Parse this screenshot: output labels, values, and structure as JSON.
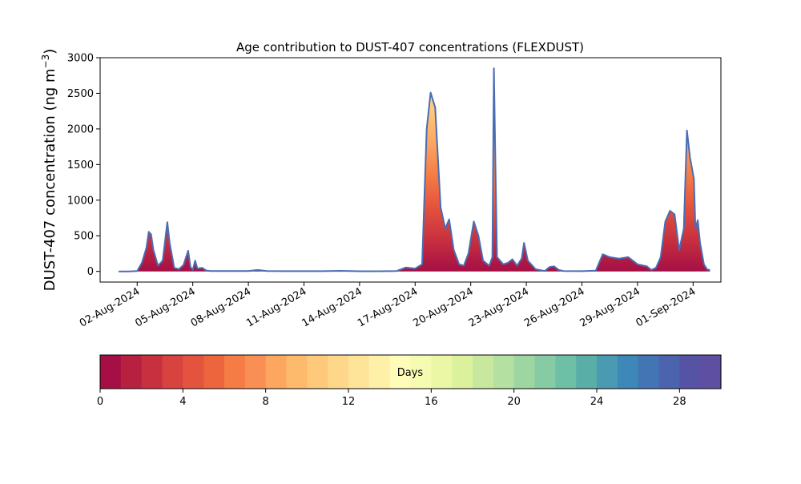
{
  "chart_data": {
    "type": "area",
    "title": "Age contribution to DUST-407 concentrations (FLEXDUST)",
    "xlabel": "",
    "ylabel": "DUST-407 concentration (ng m",
    "ylabel_superscript": "−3",
    "ylabel_close": ")",
    "xlim": [
      "2024-07-31T00:00",
      "2024-09-02T12:00"
    ],
    "ylim": [
      -150,
      3000
    ],
    "yticks": [
      0,
      500,
      1000,
      1500,
      2000,
      2500,
      3000
    ],
    "xtick_dates": [
      "2024-08-02",
      "2024-08-05",
      "2024-08-08",
      "2024-08-11",
      "2024-08-14",
      "2024-08-17",
      "2024-08-20",
      "2024-08-23",
      "2024-08-26",
      "2024-08-29",
      "2024-09-01"
    ],
    "xtick_labels": [
      "02-Aug-2024",
      "05-Aug-2024",
      "08-Aug-2024",
      "11-Aug-2024",
      "14-Aug-2024",
      "17-Aug-2024",
      "20-Aug-2024",
      "23-Aug-2024",
      "26-Aug-2024",
      "29-Aug-2024",
      "01-Sep-2024"
    ],
    "grid": false,
    "series": [
      {
        "color": "#4a6cb3",
        "points": [
          [
            "2024-08-01T00:00",
            0
          ],
          [
            "2024-08-01T12:00",
            0
          ],
          [
            "2024-08-02T00:00",
            5
          ],
          [
            "2024-08-02T06:00",
            120
          ],
          [
            "2024-08-02T12:00",
            330
          ],
          [
            "2024-08-02T15:00",
            555
          ],
          [
            "2024-08-02T18:00",
            520
          ],
          [
            "2024-08-02T21:00",
            300
          ],
          [
            "2024-08-03T03:00",
            80
          ],
          [
            "2024-08-03T09:00",
            150
          ],
          [
            "2024-08-03T15:00",
            690
          ],
          [
            "2024-08-03T18:00",
            400
          ],
          [
            "2024-08-04T00:00",
            50
          ],
          [
            "2024-08-04T06:00",
            30
          ],
          [
            "2024-08-04T12:00",
            90
          ],
          [
            "2024-08-04T18:00",
            290
          ],
          [
            "2024-08-04T21:00",
            60
          ],
          [
            "2024-08-05T00:00",
            20
          ],
          [
            "2024-08-05T03:00",
            150
          ],
          [
            "2024-08-05T06:00",
            40
          ],
          [
            "2024-08-05T12:00",
            50
          ],
          [
            "2024-08-05T18:00",
            10
          ],
          [
            "2024-08-06T00:00",
            5
          ],
          [
            "2024-08-07T00:00",
            5
          ],
          [
            "2024-08-08T00:00",
            5
          ],
          [
            "2024-08-08T12:00",
            20
          ],
          [
            "2024-08-09T00:00",
            5
          ],
          [
            "2024-08-10T00:00",
            3
          ],
          [
            "2024-08-11T00:00",
            3
          ],
          [
            "2024-08-12T00:00",
            3
          ],
          [
            "2024-08-13T00:00",
            8
          ],
          [
            "2024-08-14T00:00",
            2
          ],
          [
            "2024-08-15T00:00",
            2
          ],
          [
            "2024-08-16T00:00",
            5
          ],
          [
            "2024-08-16T12:00",
            55
          ],
          [
            "2024-08-17T00:00",
            40
          ],
          [
            "2024-08-17T09:00",
            100
          ],
          [
            "2024-08-17T15:00",
            2000
          ],
          [
            "2024-08-17T20:00",
            2510
          ],
          [
            "2024-08-18T02:00",
            2300
          ],
          [
            "2024-08-18T09:00",
            900
          ],
          [
            "2024-08-18T15:00",
            600
          ],
          [
            "2024-08-18T20:00",
            730
          ],
          [
            "2024-08-19T02:00",
            300
          ],
          [
            "2024-08-19T09:00",
            100
          ],
          [
            "2024-08-19T15:00",
            80
          ],
          [
            "2024-08-19T21:00",
            250
          ],
          [
            "2024-08-20T04:00",
            700
          ],
          [
            "2024-08-20T10:00",
            500
          ],
          [
            "2024-08-20T16:00",
            150
          ],
          [
            "2024-08-21T00:00",
            80
          ],
          [
            "2024-08-21T04:00",
            200
          ],
          [
            "2024-08-21T06:00",
            2850
          ],
          [
            "2024-08-21T08:00",
            1500
          ],
          [
            "2024-08-21T10:00",
            200
          ],
          [
            "2024-08-21T18:00",
            100
          ],
          [
            "2024-08-22T00:00",
            120
          ],
          [
            "2024-08-22T06:00",
            170
          ],
          [
            "2024-08-22T12:00",
            80
          ],
          [
            "2024-08-22T18:00",
            180
          ],
          [
            "2024-08-22T21:00",
            400
          ],
          [
            "2024-08-23T02:00",
            150
          ],
          [
            "2024-08-23T12:00",
            30
          ],
          [
            "2024-08-24T00:00",
            5
          ],
          [
            "2024-08-24T06:00",
            60
          ],
          [
            "2024-08-24T12:00",
            70
          ],
          [
            "2024-08-24T18:00",
            20
          ],
          [
            "2024-08-25T00:00",
            5
          ],
          [
            "2024-08-26T00:00",
            3
          ],
          [
            "2024-08-26T18:00",
            10
          ],
          [
            "2024-08-27T03:00",
            240
          ],
          [
            "2024-08-27T12:00",
            200
          ],
          [
            "2024-08-28T00:00",
            180
          ],
          [
            "2024-08-28T12:00",
            200
          ],
          [
            "2024-08-29T00:00",
            100
          ],
          [
            "2024-08-29T12:00",
            70
          ],
          [
            "2024-08-29T18:00",
            20
          ],
          [
            "2024-08-30T00:00",
            50
          ],
          [
            "2024-08-30T06:00",
            200
          ],
          [
            "2024-08-30T12:00",
            700
          ],
          [
            "2024-08-30T18:00",
            850
          ],
          [
            "2024-08-31T00:00",
            800
          ],
          [
            "2024-08-31T06:00",
            300
          ],
          [
            "2024-08-31T12:00",
            600
          ],
          [
            "2024-08-31T16:00",
            1980
          ],
          [
            "2024-08-31T20:00",
            1600
          ],
          [
            "2024-09-01T01:00",
            1300
          ],
          [
            "2024-09-01T03:00",
            600
          ],
          [
            "2024-09-01T06:00",
            720
          ],
          [
            "2024-09-01T09:00",
            400
          ],
          [
            "2024-09-01T14:00",
            100
          ],
          [
            "2024-09-01T18:00",
            30
          ],
          [
            "2024-09-01T22:00",
            15
          ]
        ]
      }
    ],
    "colorbar": {
      "label": "Days",
      "range": [
        0,
        30
      ],
      "ticks": [
        0,
        4,
        8,
        12,
        16,
        20,
        24,
        28
      ],
      "colors": [
        "#a50f45",
        "#b8203f",
        "#c9303f",
        "#d8423f",
        "#e4533d",
        "#ed653c",
        "#f57c45",
        "#f98f54",
        "#fca65f",
        "#fdb96c",
        "#fec97b",
        "#fed78a",
        "#fee499",
        "#fff0a8",
        "#fffbb8",
        "#f6fbb2",
        "#ebf7a5",
        "#dcf19b",
        "#c7e89e",
        "#b4e0a1",
        "#9ed6a2",
        "#86cba4",
        "#6dc0a5",
        "#5aaea8",
        "#4a9bb1",
        "#3d87b9",
        "#4374b3",
        "#4c64ad",
        "#5652a4",
        "#5e4fa2"
      ]
    },
    "age_profile_colors": [
      "#a50f45",
      "#c9303f",
      "#e4533d",
      "#f57c45",
      "#fca65f",
      "#fec97b",
      "#fee499"
    ]
  }
}
